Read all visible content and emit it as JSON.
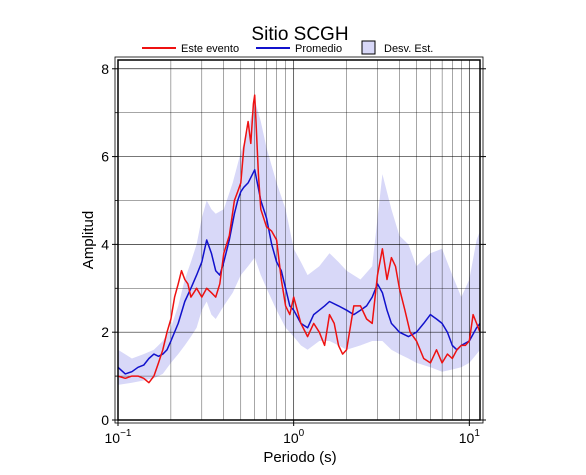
{
  "chart_data": {
    "type": "line",
    "title": "Sitio SCGH",
    "xlabel": "Periodo (s)",
    "ylabel": "Amplitud",
    "xscale": "log",
    "xlim": [
      0.1,
      11.5
    ],
    "ylim": [
      0,
      8.2
    ],
    "grid": true,
    "legend_position": "top",
    "x_ticks": [
      {
        "value": 0.1,
        "base": "10",
        "exp": "−1"
      },
      {
        "value": 1,
        "base": "10",
        "exp": "0"
      },
      {
        "value": 10,
        "base": "10",
        "exp": "1"
      }
    ],
    "y_ticks": [
      0,
      2,
      4,
      6,
      8
    ],
    "legend": {
      "event_label": "Este evento",
      "mean_label": "Promedio",
      "std_label": "Desv. Est."
    },
    "colors": {
      "event": "#ee1111",
      "mean": "#1111cc",
      "band_fill": "#d8d8f8",
      "band_stroke": "#000000"
    },
    "series": [
      {
        "name": "Este evento",
        "x": [
          0.1,
          0.11,
          0.12,
          0.13,
          0.14,
          0.15,
          0.16,
          0.17,
          0.18,
          0.19,
          0.2,
          0.21,
          0.22,
          0.23,
          0.24,
          0.25,
          0.26,
          0.27,
          0.28,
          0.3,
          0.32,
          0.34,
          0.36,
          0.38,
          0.4,
          0.43,
          0.46,
          0.48,
          0.5,
          0.52,
          0.55,
          0.57,
          0.59,
          0.6,
          0.61,
          0.63,
          0.65,
          0.7,
          0.75,
          0.8,
          0.85,
          0.9,
          0.95,
          1.0,
          1.1,
          1.2,
          1.3,
          1.4,
          1.5,
          1.6,
          1.7,
          1.8,
          1.9,
          2.0,
          2.2,
          2.4,
          2.6,
          2.8,
          3.0,
          3.2,
          3.4,
          3.6,
          3.8,
          4.0,
          4.3,
          4.6,
          5.0,
          5.5,
          6.0,
          6.5,
          7.0,
          7.5,
          8.0,
          8.5,
          9.0,
          9.5,
          10.0,
          10.5,
          11.0,
          11.5
        ],
        "values": [
          1.0,
          0.95,
          1.0,
          1.0,
          0.95,
          0.85,
          1.0,
          1.3,
          1.6,
          2.0,
          2.3,
          2.8,
          3.1,
          3.4,
          3.2,
          3.1,
          2.8,
          2.9,
          3.0,
          2.8,
          3.0,
          2.9,
          2.8,
          3.1,
          3.8,
          4.2,
          5.0,
          5.2,
          5.4,
          6.2,
          6.8,
          6.3,
          7.2,
          7.4,
          6.8,
          5.6,
          4.8,
          4.4,
          4.3,
          4.1,
          3.2,
          2.6,
          2.4,
          2.8,
          2.2,
          1.9,
          2.2,
          2.0,
          1.7,
          2.4,
          2.2,
          1.7,
          1.5,
          1.6,
          2.6,
          2.6,
          2.3,
          2.2,
          3.3,
          3.9,
          3.2,
          3.7,
          3.5,
          3.0,
          2.5,
          2.0,
          1.8,
          1.4,
          1.3,
          1.6,
          1.3,
          1.5,
          1.4,
          1.6,
          1.7,
          1.7,
          1.8,
          2.4,
          2.2,
          2.0
        ]
      },
      {
        "name": "Promedio",
        "x": [
          0.1,
          0.11,
          0.12,
          0.13,
          0.14,
          0.15,
          0.16,
          0.17,
          0.18,
          0.19,
          0.2,
          0.22,
          0.24,
          0.26,
          0.28,
          0.3,
          0.32,
          0.34,
          0.36,
          0.38,
          0.4,
          0.43,
          0.46,
          0.48,
          0.5,
          0.52,
          0.55,
          0.6,
          0.65,
          0.7,
          0.75,
          0.8,
          0.85,
          0.9,
          0.95,
          1.0,
          1.1,
          1.2,
          1.3,
          1.4,
          1.5,
          1.6,
          1.8,
          2.0,
          2.2,
          2.4,
          2.6,
          2.8,
          3.0,
          3.2,
          3.4,
          3.6,
          3.8,
          4.0,
          4.5,
          5.0,
          5.5,
          6.0,
          6.5,
          7.0,
          7.5,
          8.0,
          8.5,
          9.0,
          10.0,
          11.0,
          11.5
        ],
        "values": [
          1.2,
          1.05,
          1.1,
          1.2,
          1.25,
          1.4,
          1.5,
          1.45,
          1.5,
          1.6,
          1.8,
          2.2,
          2.7,
          3.0,
          3.3,
          3.6,
          4.1,
          3.8,
          3.4,
          3.3,
          3.6,
          4.1,
          4.7,
          5.0,
          5.2,
          5.3,
          5.4,
          5.7,
          5.0,
          4.6,
          4.0,
          3.6,
          3.4,
          3.0,
          2.6,
          2.5,
          2.2,
          2.1,
          2.4,
          2.5,
          2.6,
          2.7,
          2.6,
          2.5,
          2.4,
          2.5,
          2.6,
          2.8,
          3.1,
          2.9,
          2.5,
          2.2,
          2.1,
          2.0,
          1.9,
          2.0,
          2.2,
          2.4,
          2.3,
          2.2,
          2.0,
          1.7,
          1.6,
          1.7,
          1.8,
          2.1,
          2.2
        ]
      }
    ],
    "std_band": {
      "x": [
        0.1,
        0.12,
        0.14,
        0.16,
        0.18,
        0.2,
        0.22,
        0.24,
        0.26,
        0.28,
        0.3,
        0.32,
        0.34,
        0.36,
        0.4,
        0.45,
        0.5,
        0.55,
        0.6,
        0.65,
        0.7,
        0.8,
        0.9,
        1.0,
        1.1,
        1.2,
        1.4,
        1.6,
        1.8,
        2.0,
        2.4,
        2.8,
        3.2,
        3.6,
        4.0,
        4.5,
        5.0,
        6.0,
        7.0,
        8.0,
        9.0,
        10.0,
        11.0,
        11.5
      ],
      "lower": [
        0.8,
        0.85,
        0.9,
        0.95,
        1.05,
        1.3,
        1.5,
        1.7,
        1.9,
        2.1,
        2.5,
        2.7,
        2.4,
        2.3,
        2.6,
        2.9,
        3.3,
        3.5,
        3.7,
        3.3,
        3.0,
        2.5,
        2.1,
        1.9,
        1.7,
        1.6,
        1.8,
        1.8,
        1.7,
        1.6,
        1.7,
        1.8,
        1.8,
        1.6,
        1.5,
        1.4,
        1.3,
        1.2,
        1.1,
        1.15,
        1.2,
        1.3,
        1.5,
        1.6
      ],
      "upper": [
        1.6,
        1.4,
        1.5,
        1.6,
        1.8,
        2.1,
        2.6,
        3.2,
        3.6,
        4.0,
        4.6,
        5.0,
        4.8,
        4.7,
        4.8,
        5.4,
        6.1,
        6.6,
        7.3,
        6.8,
        6.2,
        5.4,
        4.8,
        3.9,
        3.6,
        3.3,
        3.5,
        3.8,
        3.6,
        3.4,
        3.2,
        3.5,
        5.6,
        4.8,
        4.2,
        4.0,
        3.5,
        3.8,
        3.9,
        3.3,
        2.8,
        3.2,
        4.1,
        4.3
      ]
    }
  }
}
